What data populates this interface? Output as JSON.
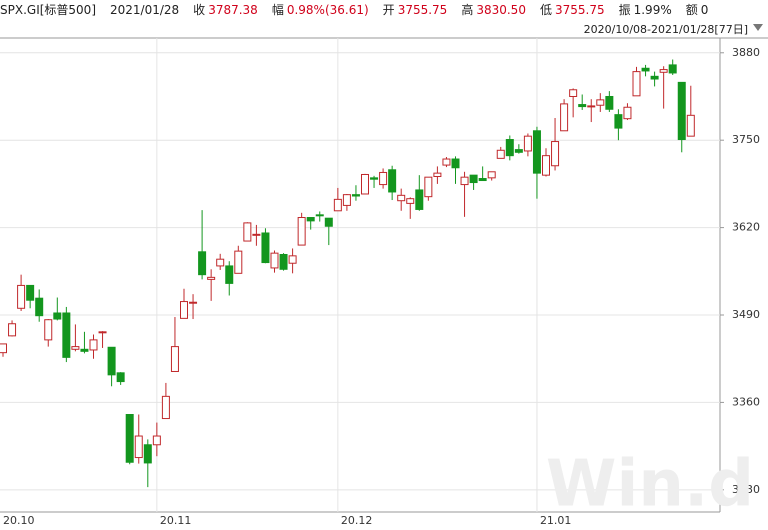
{
  "header": {
    "code": "SPX.GI[标普500]",
    "date": "2021/01/28",
    "fields": [
      {
        "label": "收",
        "value": "3787.38",
        "color": "#d0021b"
      },
      {
        "label": "幅",
        "value": "0.98%(36.61)",
        "color": "#d0021b"
      },
      {
        "label": "开",
        "value": "3755.75",
        "color": "#d0021b"
      },
      {
        "label": "高",
        "value": "3830.50",
        "color": "#d0021b"
      },
      {
        "label": "低",
        "value": "3755.75",
        "color": "#d0021b"
      },
      {
        "label": "振",
        "value": "1.99%",
        "color": "#222222"
      },
      {
        "label": "额",
        "value": "0",
        "color": "#222222"
      }
    ],
    "range": "2020/10/08-2021/01/28[77日]",
    "watermark": "Win.d"
  },
  "chart_data": {
    "type": "candlestick",
    "categories": [
      "20.10",
      null,
      null,
      null,
      null,
      null,
      null,
      null,
      null,
      null,
      null,
      null,
      null,
      null,
      null,
      null,
      null,
      "20.11",
      null,
      null,
      null,
      null,
      null,
      null,
      null,
      null,
      null,
      null,
      null,
      null,
      null,
      null,
      null,
      null,
      null,
      null,
      null,
      "20.12",
      null,
      null,
      null,
      null,
      null,
      null,
      null,
      null,
      null,
      null,
      null,
      null,
      null,
      null,
      null,
      null,
      null,
      null,
      null,
      null,
      null,
      "21.01",
      null,
      null,
      null,
      null,
      null,
      null,
      null,
      null,
      null,
      null,
      null,
      null,
      null,
      null,
      null,
      null,
      null
    ],
    "open": [
      3434,
      3459,
      3500,
      3534,
      3515,
      3453,
      3493,
      3493,
      3439,
      3439,
      3438,
      3464,
      3442,
      3404,
      3342,
      3278,
      3297,
      3297,
      3336,
      3406,
      3485,
      3508,
      3584,
      3543,
      3563,
      3563,
      3552,
      3600,
      3610,
      3612,
      3560,
      3580,
      3567,
      3594,
      3635,
      3639,
      3634,
      3645,
      3653,
      3669,
      3670,
      3694,
      3684,
      3706,
      3660,
      3656,
      3676,
      3666,
      3696,
      3713,
      3722,
      3684,
      3698,
      3693,
      3694,
      3723,
      3751,
      3736,
      3734,
      3764,
      3698,
      3712,
      3764,
      3815,
      3803,
      3801,
      3802,
      3815,
      3788,
      3782,
      3816,
      3857,
      3845,
      3851,
      3862,
      3836,
      3756
    ],
    "high": [
      3447,
      3482,
      3550,
      3534,
      3528,
      3484,
      3516,
      3502,
      3476,
      3465,
      3461,
      3466,
      3442,
      3405,
      3342,
      3342,
      3305,
      3330,
      3389,
      3487,
      3529,
      3521,
      3646,
      3558,
      3581,
      3570,
      3593,
      3628,
      3624,
      3619,
      3586,
      3582,
      3589,
      3642,
      3635,
      3644,
      3634,
      3679,
      3670,
      3683,
      3700,
      3697,
      3708,
      3712,
      3678,
      3665,
      3698,
      3695,
      3711,
      3725,
      3726,
      3703,
      3698,
      3711,
      3703,
      3740,
      3757,
      3744,
      3760,
      3770,
      3738,
      3783,
      3811,
      3827,
      3818,
      3811,
      3820,
      3823,
      3796,
      3805,
      3859,
      3862,
      3852,
      3860,
      3870,
      3836,
      3831
    ],
    "low": [
      3428,
      3458,
      3496,
      3500,
      3480,
      3443,
      3482,
      3420,
      3436,
      3433,
      3425,
      3441,
      3384,
      3386,
      3268,
      3269,
      3234,
      3280,
      3336,
      3406,
      3485,
      3484,
      3543,
      3511,
      3557,
      3519,
      3552,
      3600,
      3593,
      3567,
      3553,
      3556,
      3552,
      3594,
      3617,
      3629,
      3594,
      3645,
      3645,
      3660,
      3670,
      3679,
      3678,
      3661,
      3645,
      3633,
      3645,
      3660,
      3685,
      3710,
      3685,
      3636,
      3676,
      3690,
      3690,
      3723,
      3720,
      3730,
      3726,
      3663,
      3696,
      3705,
      3764,
      3784,
      3795,
      3777,
      3792,
      3792,
      3750,
      3780,
      3816,
      3845,
      3830,
      3797,
      3847,
      3732,
      3756
    ],
    "close": [
      3447,
      3477,
      3534,
      3512,
      3489,
      3483,
      3484,
      3427,
      3443,
      3436,
      3453,
      3465,
      3401,
      3391,
      3271,
      3310,
      3270,
      3310,
      3369,
      3443,
      3510,
      3509,
      3550,
      3546,
      3573,
      3537,
      3585,
      3627,
      3610,
      3568,
      3582,
      3558,
      3578,
      3635,
      3630,
      3638,
      3622,
      3662,
      3669,
      3667,
      3699,
      3692,
      3702,
      3673,
      3668,
      3663,
      3647,
      3695,
      3701,
      3722,
      3709,
      3695,
      3687,
      3690,
      3703,
      3735,
      3727,
      3732,
      3756,
      3701,
      3727,
      3748,
      3804,
      3825,
      3800,
      3801,
      3810,
      3796,
      3768,
      3799,
      3852,
      3853,
      3841,
      3855,
      3850,
      3751,
      3787
    ],
    "up_color": "#c0282b",
    "down_color": "#13961e",
    "ylim": [
      3197,
      3902
    ],
    "yticks": [
      3230,
      3360,
      3490,
      3620,
      3750,
      3880
    ],
    "grid": true
  }
}
